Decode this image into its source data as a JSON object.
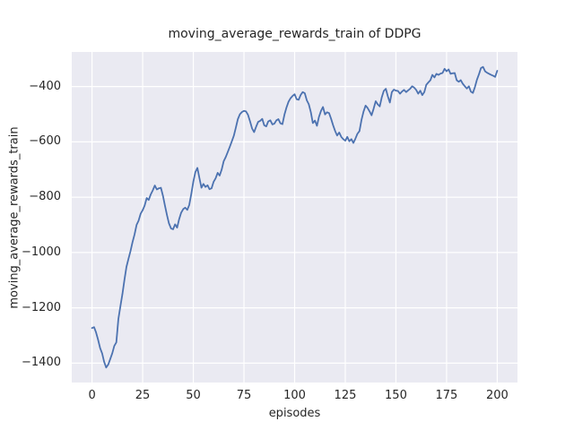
{
  "figure": {
    "title": "moving_average_rewards_train of DDPG",
    "xlabel": "episodes",
    "ylabel": "moving_average_rewards_train"
  },
  "chart_data": {
    "type": "line",
    "title": "moving_average_rewards_train of DDPG",
    "xlabel": "episodes",
    "ylabel": "moving_average_rewards_train",
    "legend": null,
    "grid": true,
    "xlim": [
      -10,
      210
    ],
    "ylim": [
      -1470,
      -275
    ],
    "x_ticks": [
      0,
      25,
      50,
      75,
      100,
      125,
      150,
      175,
      200
    ],
    "x_tick_labels": [
      "0",
      "25",
      "50",
      "75",
      "100",
      "125",
      "150",
      "175",
      "200"
    ],
    "y_ticks": [
      -400,
      -600,
      -800,
      -1000,
      -1200,
      -1400
    ],
    "y_tick_labels": [
      "−400",
      "−600",
      "−800",
      "−1000",
      "−1200",
      "−1400"
    ],
    "style": {
      "plot_background": "#eaeaf2",
      "grid_color": "#ffffff",
      "line_color": "#4c72b0",
      "text_color": "#262626",
      "figure_background": "#ffffff"
    },
    "series": [
      {
        "name": "moving_average_rewards_train",
        "x_start": 0,
        "x_step": 1,
        "values": [
          -1273,
          -1270,
          -1289,
          -1316,
          -1345,
          -1365,
          -1395,
          -1416,
          -1405,
          -1385,
          -1364,
          -1338,
          -1325,
          -1240,
          -1195,
          -1150,
          -1100,
          -1052,
          -1022,
          -995,
          -962,
          -935,
          -900,
          -885,
          -860,
          -847,
          -830,
          -803,
          -810,
          -790,
          -775,
          -758,
          -772,
          -768,
          -766,
          -795,
          -830,
          -865,
          -895,
          -913,
          -916,
          -898,
          -910,
          -880,
          -856,
          -843,
          -838,
          -846,
          -828,
          -788,
          -745,
          -710,
          -694,
          -730,
          -766,
          -752,
          -763,
          -757,
          -771,
          -768,
          -745,
          -732,
          -712,
          -722,
          -700,
          -670,
          -655,
          -637,
          -618,
          -598,
          -578,
          -548,
          -518,
          -500,
          -492,
          -488,
          -490,
          -502,
          -526,
          -552,
          -565,
          -545,
          -528,
          -524,
          -517,
          -540,
          -544,
          -526,
          -522,
          -537,
          -534,
          -522,
          -518,
          -533,
          -536,
          -501,
          -475,
          -455,
          -442,
          -434,
          -428,
          -446,
          -448,
          -430,
          -420,
          -424,
          -450,
          -464,
          -493,
          -532,
          -523,
          -542,
          -510,
          -488,
          -474,
          -501,
          -493,
          -496,
          -517,
          -540,
          -561,
          -577,
          -566,
          -582,
          -590,
          -596,
          -582,
          -598,
          -590,
          -604,
          -588,
          -571,
          -561,
          -520,
          -491,
          -469,
          -477,
          -490,
          -504,
          -480,
          -453,
          -464,
          -472,
          -440,
          -416,
          -408,
          -435,
          -458,
          -420,
          -411,
          -415,
          -416,
          -426,
          -418,
          -412,
          -420,
          -414,
          -408,
          -399,
          -404,
          -412,
          -426,
          -415,
          -431,
          -420,
          -394,
          -385,
          -377,
          -358,
          -367,
          -354,
          -358,
          -353,
          -351,
          -336,
          -345,
          -338,
          -354,
          -352,
          -351,
          -377,
          -383,
          -377,
          -390,
          -399,
          -407,
          -399,
          -418,
          -423,
          -401,
          -375,
          -355,
          -333,
          -329,
          -345,
          -350,
          -354,
          -358,
          -361,
          -365,
          -343
        ]
      }
    ]
  }
}
